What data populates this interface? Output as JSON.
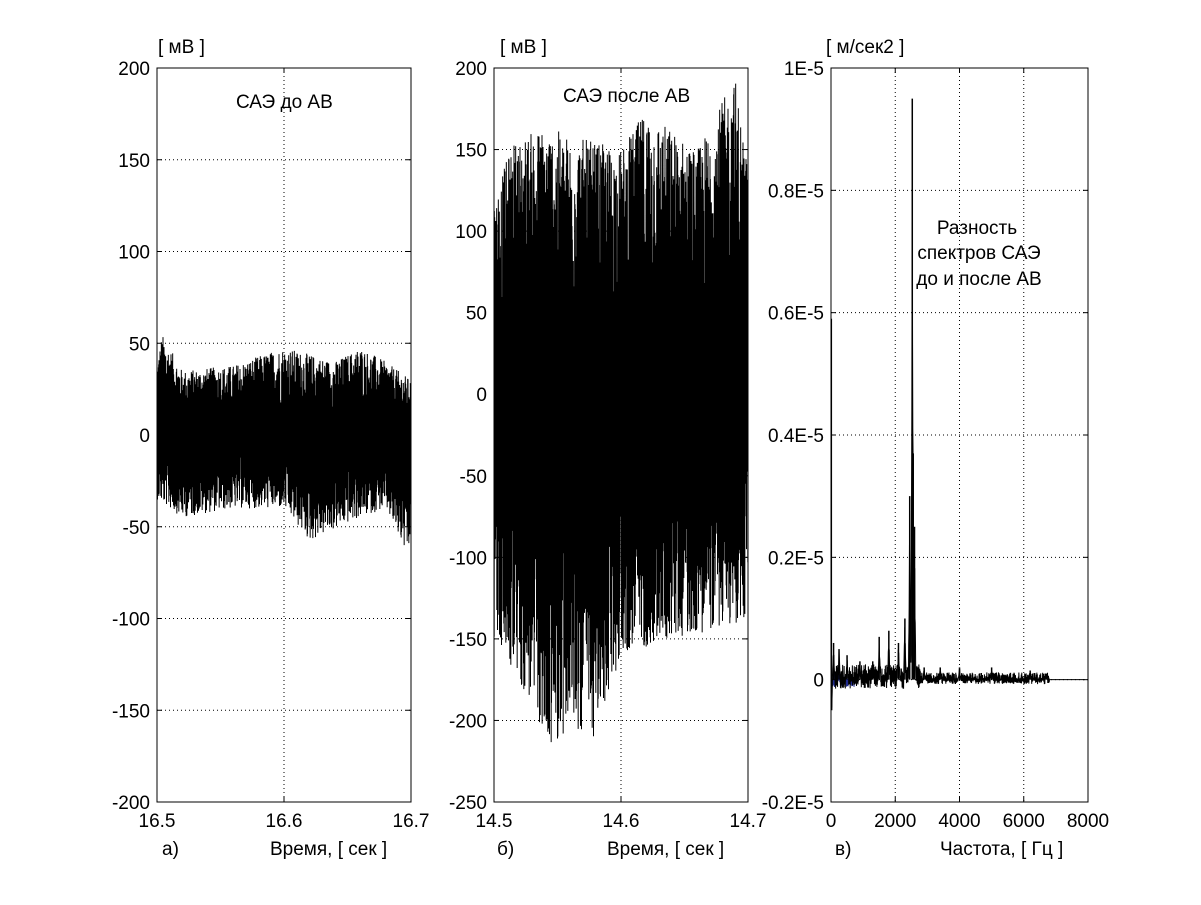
{
  "chart_data": [
    {
      "type": "line",
      "panel_letter": "а)",
      "annotation": [
        "САЭ до АВ"
      ],
      "xlabel": "Время, [ сек ]",
      "ylabel": "[ мВ ]",
      "xlim": [
        16.5,
        16.7
      ],
      "ylim": [
        -200,
        200
      ],
      "xticks": [
        16.5,
        16.6,
        16.7
      ],
      "xtick_labels": [
        "16.5",
        "16.6",
        "16.7"
      ],
      "yticks": [
        -200,
        -150,
        -100,
        -50,
        0,
        50,
        100,
        150,
        200
      ],
      "ytick_labels": [
        "-200",
        "-150",
        "-100",
        "-50",
        "0",
        "50",
        "100",
        "150",
        "200"
      ],
      "grid": true,
      "signal": {
        "color": "#000000",
        "envelope_upper": [
          [
            16.5,
            40
          ],
          [
            16.504,
            55
          ],
          [
            16.52,
            35
          ],
          [
            16.56,
            38
          ],
          [
            16.6,
            48
          ],
          [
            16.64,
            40
          ],
          [
            16.66,
            48
          ],
          [
            16.68,
            40
          ],
          [
            16.7,
            30
          ]
        ],
        "envelope_lower": [
          [
            16.5,
            -35
          ],
          [
            16.52,
            -45
          ],
          [
            16.56,
            -40
          ],
          [
            16.6,
            -40
          ],
          [
            16.62,
            -58
          ],
          [
            16.66,
            -45
          ],
          [
            16.68,
            -40
          ],
          [
            16.698,
            -68
          ],
          [
            16.7,
            -50
          ]
        ]
      }
    },
    {
      "type": "line",
      "panel_letter": "б)",
      "annotation": [
        "САЭ после АВ"
      ],
      "xlabel": "Время, [ сек ]",
      "ylabel": "[ мВ ]",
      "xlim": [
        14.5,
        14.7
      ],
      "ylim": [
        -250,
        200
      ],
      "xticks": [
        14.5,
        14.6,
        14.7
      ],
      "xtick_labels": [
        "14.5",
        "14.6",
        "14.7"
      ],
      "yticks": [
        -250,
        -200,
        -150,
        -100,
        -50,
        0,
        50,
        100,
        150,
        200
      ],
      "ytick_labels": [
        "-250",
        "-200",
        "-150",
        "-100",
        "-50",
        "0",
        "50",
        "100",
        "150",
        "200"
      ],
      "grid": true,
      "signal": {
        "color": "#000000",
        "envelope_upper": [
          [
            14.5,
            120
          ],
          [
            14.515,
            155
          ],
          [
            14.54,
            165
          ],
          [
            14.555,
            160
          ],
          [
            14.6,
            150
          ],
          [
            14.62,
            175
          ],
          [
            14.66,
            150
          ],
          [
            14.69,
            195
          ],
          [
            14.7,
            140
          ]
        ],
        "envelope_lower": [
          [
            14.5,
            -150
          ],
          [
            14.535,
            -200
          ],
          [
            14.54,
            -220
          ],
          [
            14.56,
            -205
          ],
          [
            14.58,
            -212
          ],
          [
            14.6,
            -160
          ],
          [
            14.64,
            -150
          ],
          [
            14.7,
            -140
          ]
        ]
      }
    },
    {
      "type": "line",
      "panel_letter": "в)",
      "annotation": [
        "Разность",
        "спектров САЭ",
        "до и после АВ"
      ],
      "xlabel": "Частота, [ Гц ]",
      "ylabel": "[ м/сек2 ]",
      "xlim": [
        0,
        8000
      ],
      "ylim": [
        -2e-06,
        1e-05
      ],
      "xticks": [
        0,
        2000,
        4000,
        6000,
        8000
      ],
      "xtick_labels": [
        "0",
        "2000",
        "4000",
        "6000",
        "8000"
      ],
      "yticks": [
        -2e-06,
        0,
        2e-06,
        4e-06,
        6e-06,
        8e-06,
        1e-05
      ],
      "ytick_labels": [
        "-0.2E-5",
        "0",
        "0.2E-5",
        "0.4E-5",
        "0.6E-5",
        "0.8E-5",
        "1E-5"
      ],
      "grid": true,
      "signal": {
        "color": "#000000",
        "secondary_color": "#1f2a8c",
        "spikes": [
          [
            10,
            5.9e-06
          ],
          [
            20,
            -5e-07
          ],
          [
            80,
            6e-07
          ],
          [
            250,
            5e-07
          ],
          [
            500,
            4e-07
          ],
          [
            900,
            3e-07
          ],
          [
            1300,
            3e-07
          ],
          [
            1500,
            7e-07
          ],
          [
            1800,
            8e-07
          ],
          [
            2100,
            6e-07
          ],
          [
            2300,
            1e-06
          ],
          [
            2450,
            3e-06
          ],
          [
            2530,
            9.5e-06
          ],
          [
            2560,
            3.7e-06
          ],
          [
            2600,
            2.5e-06
          ],
          [
            2900,
            2e-07
          ],
          [
            3400,
            2e-07
          ],
          [
            4000,
            2e-07
          ],
          [
            5000,
            2e-07
          ],
          [
            6200,
            1.5e-07
          ],
          [
            6700,
            1e-07
          ]
        ]
      }
    }
  ]
}
